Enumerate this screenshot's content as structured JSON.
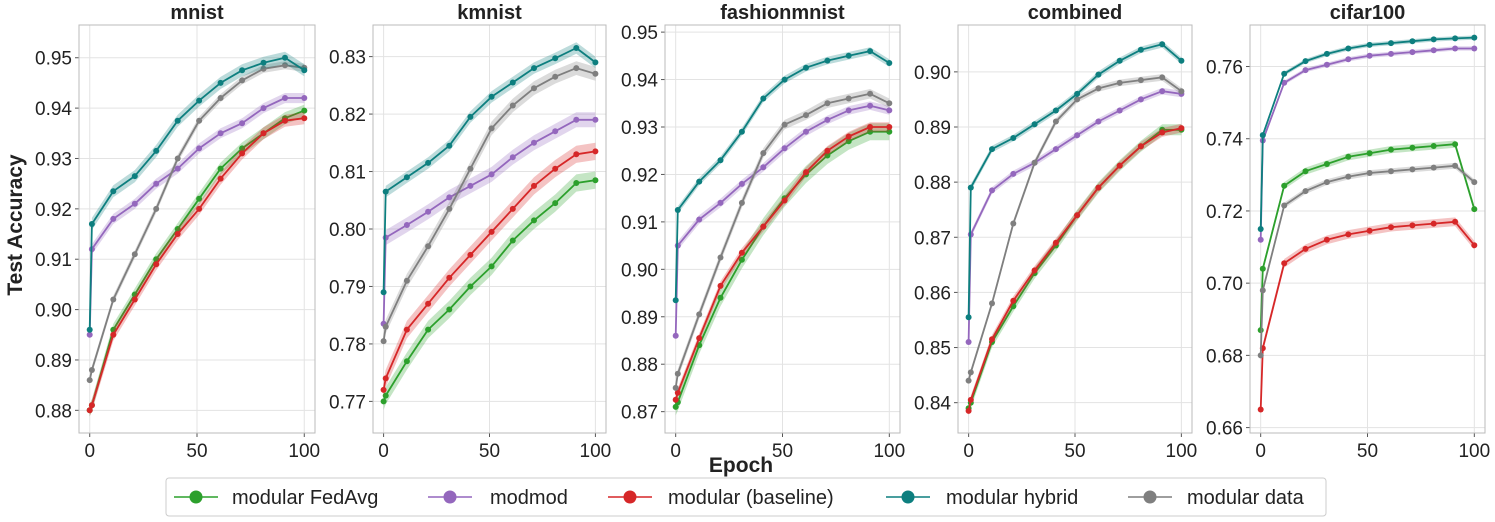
{
  "figure": {
    "xlabel": "Epoch",
    "ylabel": "Test Accuracy"
  },
  "legend": [
    {
      "label": "modular FedAvg",
      "color": "#2ca02c"
    },
    {
      "label": "modmod",
      "color": "#9467bd"
    },
    {
      "label": "modular (baseline)",
      "color": "#d62728"
    },
    {
      "label": "modular hybrid",
      "color": "#0d7f7f"
    },
    {
      "label": "modular data",
      "color": "#7f7f7f"
    }
  ],
  "chart_data": [
    {
      "type": "line",
      "title": "mnist",
      "xlabel": "Epoch",
      "ylabel": "Test Accuracy",
      "xlim": [
        -5,
        105
      ],
      "ylim": [
        0.8755,
        0.9565
      ],
      "xticks": [
        0,
        50,
        100
      ],
      "yticks": [
        0.88,
        0.89,
        0.9,
        0.91,
        0.92,
        0.93,
        0.94,
        0.95
      ],
      "ytick_labels": [
        "0.88",
        "0.89",
        "0.90",
        "0.91",
        "0.92",
        "0.93",
        "0.94",
        "0.95"
      ],
      "x": [
        0,
        1,
        11,
        21,
        31,
        41,
        51,
        61,
        71,
        81,
        91,
        100
      ],
      "series": [
        {
          "name": "modular FedAvg",
          "values": [
            0.88,
            0.881,
            0.896,
            0.903,
            0.91,
            0.916,
            0.922,
            0.928,
            0.932,
            0.935,
            0.938,
            0.9395
          ],
          "band": 0.0012
        },
        {
          "name": "modmod",
          "values": [
            0.895,
            0.912,
            0.918,
            0.921,
            0.925,
            0.928,
            0.932,
            0.935,
            0.937,
            0.94,
            0.942,
            0.942
          ],
          "band": 0.001
        },
        {
          "name": "modular (baseline)",
          "values": [
            0.88,
            0.881,
            0.895,
            0.902,
            0.909,
            0.915,
            0.92,
            0.926,
            0.931,
            0.935,
            0.9375,
            0.938
          ],
          "band": 0.0012
        },
        {
          "name": "modular hybrid",
          "values": [
            0.896,
            0.917,
            0.9235,
            0.9265,
            0.9315,
            0.9375,
            0.9415,
            0.945,
            0.9475,
            0.949,
            0.95,
            0.9475
          ],
          "band": 0.0012
        },
        {
          "name": "modular data",
          "values": [
            0.886,
            0.888,
            0.902,
            0.911,
            0.92,
            0.93,
            0.9375,
            0.942,
            0.9455,
            0.9478,
            0.9485,
            0.948
          ],
          "band": 0.0008
        }
      ]
    },
    {
      "type": "line",
      "title": "kmnist",
      "xlabel": "Epoch",
      "ylabel": "",
      "xlim": [
        -5,
        105
      ],
      "ylim": [
        0.7645,
        0.8355
      ],
      "xticks": [
        0,
        50,
        100
      ],
      "yticks": [
        0.77,
        0.78,
        0.79,
        0.8,
        0.81,
        0.82,
        0.83
      ],
      "ytick_labels": [
        "0.77",
        "0.78",
        "0.79",
        "0.80",
        "0.81",
        "0.82",
        "0.83"
      ],
      "x": [
        0,
        1,
        11,
        21,
        31,
        41,
        51,
        61,
        71,
        81,
        91,
        100
      ],
      "series": [
        {
          "name": "modular FedAvg",
          "values": [
            0.77,
            0.771,
            0.777,
            0.7825,
            0.786,
            0.79,
            0.7935,
            0.798,
            0.8015,
            0.8045,
            0.808,
            0.8085
          ],
          "band": 0.0015
        },
        {
          "name": "modmod",
          "values": [
            0.7835,
            0.7985,
            0.8007,
            0.803,
            0.8055,
            0.8075,
            0.8095,
            0.8125,
            0.815,
            0.817,
            0.819,
            0.819
          ],
          "band": 0.0013
        },
        {
          "name": "modular (baseline)",
          "values": [
            0.772,
            0.774,
            0.7825,
            0.787,
            0.7915,
            0.7955,
            0.7995,
            0.8035,
            0.8075,
            0.8105,
            0.813,
            0.8135
          ],
          "band": 0.0015
        },
        {
          "name": "modular hybrid",
          "values": [
            0.789,
            0.8065,
            0.809,
            0.8115,
            0.8145,
            0.8195,
            0.823,
            0.8255,
            0.828,
            0.8297,
            0.8315,
            0.829
          ],
          "band": 0.001
        },
        {
          "name": "modular data",
          "values": [
            0.7805,
            0.783,
            0.791,
            0.797,
            0.8035,
            0.8105,
            0.8175,
            0.8215,
            0.8245,
            0.8265,
            0.828,
            0.827
          ],
          "band": 0.0012
        }
      ]
    },
    {
      "type": "line",
      "title": "fashionmnist",
      "xlabel": "Epoch",
      "ylabel": "",
      "xlim": [
        -5,
        105
      ],
      "ylim": [
        0.8655,
        0.9515
      ],
      "xticks": [
        0,
        50,
        100
      ],
      "yticks": [
        0.87,
        0.88,
        0.89,
        0.9,
        0.91,
        0.92,
        0.93,
        0.94,
        0.95
      ],
      "ytick_labels": [
        "0.87",
        "0.88",
        "0.89",
        "0.90",
        "0.91",
        "0.92",
        "0.93",
        "0.94",
        "0.95"
      ],
      "x": [
        0,
        1,
        11,
        21,
        31,
        41,
        51,
        61,
        71,
        81,
        91,
        100
      ],
      "series": [
        {
          "name": "modular FedAvg",
          "values": [
            0.871,
            0.872,
            0.884,
            0.894,
            0.902,
            0.909,
            0.915,
            0.92,
            0.924,
            0.927,
            0.929,
            0.929
          ],
          "band": 0.0018
        },
        {
          "name": "modmod",
          "values": [
            0.886,
            0.905,
            0.9105,
            0.914,
            0.918,
            0.9215,
            0.9255,
            0.929,
            0.9315,
            0.9335,
            0.9345,
            0.9335
          ],
          "band": 0.0009
        },
        {
          "name": "modular (baseline)",
          "values": [
            0.8725,
            0.874,
            0.8855,
            0.8965,
            0.9035,
            0.909,
            0.9145,
            0.9205,
            0.925,
            0.928,
            0.93,
            0.93
          ],
          "band": 0.001
        },
        {
          "name": "modular hybrid",
          "values": [
            0.8935,
            0.9125,
            0.9185,
            0.923,
            0.929,
            0.936,
            0.94,
            0.9425,
            0.944,
            0.945,
            0.946,
            0.9435
          ],
          "band": 0.0008
        },
        {
          "name": "modular data",
          "values": [
            0.875,
            0.878,
            0.8905,
            0.9025,
            0.914,
            0.9245,
            0.9305,
            0.9325,
            0.935,
            0.936,
            0.937,
            0.935
          ],
          "band": 0.001
        }
      ]
    },
    {
      "type": "line",
      "title": "combined",
      "xlabel": "Epoch",
      "ylabel": "",
      "xlim": [
        -5,
        105
      ],
      "ylim": [
        0.8345,
        0.9085
      ],
      "xticks": [
        0,
        50,
        100
      ],
      "yticks": [
        0.84,
        0.85,
        0.86,
        0.87,
        0.88,
        0.89,
        0.9
      ],
      "ytick_labels": [
        "0.84",
        "0.85",
        "0.86",
        "0.87",
        "0.88",
        "0.89",
        "0.90"
      ],
      "x": [
        0,
        1,
        11,
        21,
        31,
        41,
        51,
        61,
        71,
        81,
        91,
        100
      ],
      "series": [
        {
          "name": "modular FedAvg",
          "values": [
            0.839,
            0.84,
            0.851,
            0.8575,
            0.8635,
            0.8685,
            0.874,
            0.879,
            0.883,
            0.8865,
            0.8895,
            0.8895
          ],
          "band": 0.001
        },
        {
          "name": "modmod",
          "values": [
            0.851,
            0.8705,
            0.8785,
            0.8815,
            0.8835,
            0.886,
            0.8885,
            0.891,
            0.893,
            0.895,
            0.8965,
            0.896
          ],
          "band": 0.0006
        },
        {
          "name": "modular (baseline)",
          "values": [
            0.8385,
            0.8405,
            0.8515,
            0.8585,
            0.864,
            0.869,
            0.874,
            0.879,
            0.883,
            0.8865,
            0.889,
            0.8898
          ],
          "band": 0.0008
        },
        {
          "name": "modular hybrid",
          "values": [
            0.8555,
            0.879,
            0.886,
            0.888,
            0.8905,
            0.893,
            0.896,
            0.8995,
            0.902,
            0.904,
            0.905,
            0.902
          ],
          "band": 0.0006
        },
        {
          "name": "modular data",
          "values": [
            0.844,
            0.8455,
            0.858,
            0.8725,
            0.8835,
            0.891,
            0.895,
            0.897,
            0.898,
            0.8985,
            0.899,
            0.8965
          ],
          "band": 0.0006
        }
      ]
    },
    {
      "type": "line",
      "title": "cifar100",
      "xlabel": "Epoch",
      "ylabel": "",
      "xlim": [
        -5,
        105
      ],
      "ylim": [
        0.6585,
        0.7715
      ],
      "xticks": [
        0,
        50,
        100
      ],
      "yticks": [
        0.66,
        0.68,
        0.7,
        0.72,
        0.74,
        0.76
      ],
      "ytick_labels": [
        "0.66",
        "0.68",
        "0.70",
        "0.72",
        "0.74",
        "0.76"
      ],
      "x": [
        0,
        1,
        11,
        21,
        31,
        41,
        51,
        61,
        71,
        81,
        91,
        100
      ],
      "series": [
        {
          "name": "modular FedAvg",
          "values": [
            0.687,
            0.704,
            0.727,
            0.731,
            0.733,
            0.735,
            0.736,
            0.737,
            0.7375,
            0.738,
            0.7385,
            0.7205
          ],
          "band": 0.001
        },
        {
          "name": "modmod",
          "values": [
            0.712,
            0.7395,
            0.7555,
            0.759,
            0.7605,
            0.762,
            0.763,
            0.7635,
            0.764,
            0.7645,
            0.765,
            0.765
          ],
          "band": 0.0006
        },
        {
          "name": "modular (baseline)",
          "values": [
            0.665,
            0.682,
            0.7055,
            0.7095,
            0.712,
            0.7135,
            0.7145,
            0.7155,
            0.716,
            0.7165,
            0.717,
            0.7105
          ],
          "band": 0.0012
        },
        {
          "name": "modular hybrid",
          "values": [
            0.715,
            0.741,
            0.758,
            0.7615,
            0.7635,
            0.765,
            0.766,
            0.7665,
            0.767,
            0.7675,
            0.7678,
            0.768
          ],
          "band": 0.0006
        },
        {
          "name": "modular data",
          "values": [
            0.68,
            0.698,
            0.7215,
            0.7255,
            0.728,
            0.7295,
            0.7305,
            0.731,
            0.7315,
            0.732,
            0.7325,
            0.728
          ],
          "band": 0.0008
        }
      ]
    }
  ]
}
